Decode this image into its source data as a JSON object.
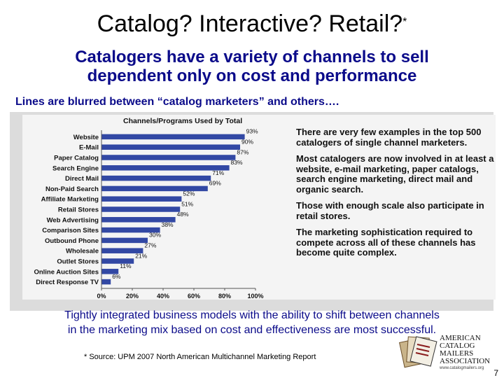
{
  "slide": {
    "title": "Catalog? Interactive? Retail?",
    "title_mark": "*",
    "subtitle_line1": "Catalogers have a variety of channels to sell",
    "subtitle_line2": "dependent only on cost and performance",
    "lines_text": "Lines are blurred between “catalog marketers” and others….",
    "bottom_line1": "Tightly integrated business models with the ability to shift between channels",
    "bottom_line2": "in the marketing mix based on cost and effectiveness are most successful.",
    "source": "* Source: UPM 2007 North American Multichannel Marketing Report",
    "page_number": "7"
  },
  "notes": [
    "There are very few examples in the top 500 catalogers of single channel marketers.",
    "Most catalogers are now involved in at least a website, e-mail marketing, paper catalogs, search engine marketing, direct mail and organic search.",
    "Those with enough scale also participate in retail stores.",
    "The marketing sophistication required to compete across all of these channels has become quite complex."
  ],
  "logo": {
    "line1": "AMERICAN",
    "line2": "CATALOG MAILERS",
    "line3": "ASSOCIATION",
    "url": "www.catalogmailers.org"
  },
  "colors": {
    "bar": "#3248a4",
    "subtitle": "#0b0b8a",
    "panel": "#dcdcdc"
  },
  "chart_data": {
    "type": "bar",
    "orientation": "horizontal",
    "title": "Channels/Programs Used by Total",
    "categories": [
      "Website",
      "E-Mail",
      "Paper Catalog",
      "Search Engine",
      "Direct Mail",
      "Non-Paid Search",
      "Affiliate Marketing",
      "Retail Stores",
      "Web Advertising",
      "Comparison Sites",
      "Outbound Phone",
      "Wholesale",
      "Outlet Stores",
      "Online Auction Sites",
      "Direct Response TV"
    ],
    "values": [
      93,
      90,
      87,
      83,
      71,
      69,
      52,
      51,
      48,
      38,
      30,
      27,
      21,
      11,
      6
    ],
    "value_labels": [
      "93%",
      "90%",
      "87%",
      "83%",
      "71%",
      "69%",
      "52%",
      "51%",
      "48%",
      "38%",
      "30%",
      "27%",
      "21%",
      "11%",
      "6%"
    ],
    "xlim": [
      0,
      100
    ],
    "xticks": [
      "0%",
      "20%",
      "40%",
      "60%",
      "80%",
      "100%"
    ],
    "grid": false,
    "legend": "none"
  }
}
